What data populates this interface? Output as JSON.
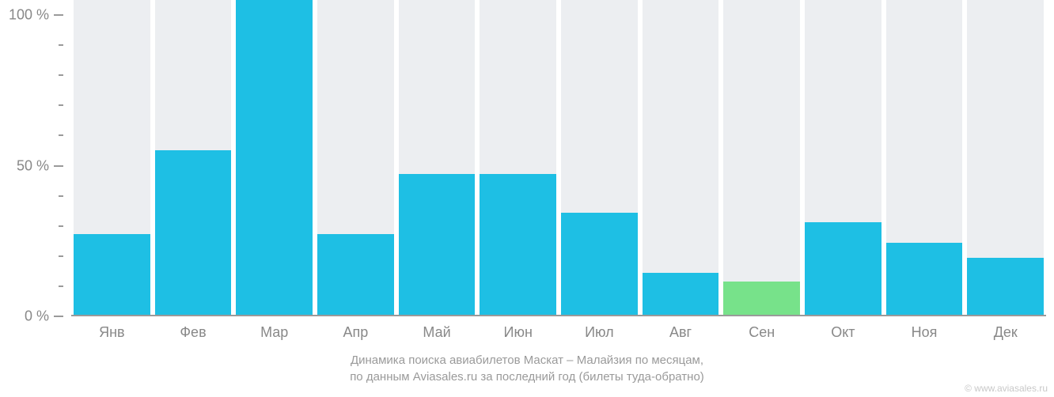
{
  "chart": {
    "type": "bar",
    "background_color": "#ffffff",
    "bar_background_color": "#eceef1",
    "axis_color": "#9a9a9a",
    "label_color": "#888888",
    "label_fontsize": 18,
    "caption_color": "#9a9a9a",
    "caption_fontsize": 15,
    "ylim": [
      0,
      105
    ],
    "y_major_ticks": [
      0,
      50,
      100
    ],
    "y_major_labels": [
      "0 %",
      "50 %",
      "100 %"
    ],
    "y_minor_step": 10,
    "months": [
      {
        "label": "Янв",
        "value": 27,
        "color": "#1ebfe4"
      },
      {
        "label": "Фев",
        "value": 55,
        "color": "#1ebfe4"
      },
      {
        "label": "Мар",
        "value": 105,
        "color": "#1ebfe4"
      },
      {
        "label": "Апр",
        "value": 27,
        "color": "#1ebfe4"
      },
      {
        "label": "Май",
        "value": 47,
        "color": "#1ebfe4"
      },
      {
        "label": "Июн",
        "value": 47,
        "color": "#1ebfe4"
      },
      {
        "label": "Июл",
        "value": 34,
        "color": "#1ebfe4"
      },
      {
        "label": "Авг",
        "value": 14,
        "color": "#1ebfe4"
      },
      {
        "label": "Сен",
        "value": 11,
        "color": "#77e28a"
      },
      {
        "label": "Окт",
        "value": 31,
        "color": "#1ebfe4"
      },
      {
        "label": "Ноя",
        "value": 24,
        "color": "#1ebfe4"
      },
      {
        "label": "Дек",
        "value": 19,
        "color": "#1ebfe4"
      }
    ],
    "caption_line1": "Динамика поиска авиабилетов Маскат – Малайзия по месяцам,",
    "caption_line2": "по данным Aviasales.ru за последний год (билеты туда-обратно)",
    "attribution": "© www.aviasales.ru"
  }
}
